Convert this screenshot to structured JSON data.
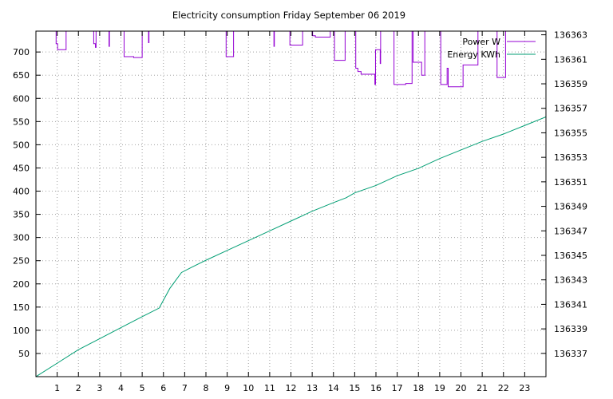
{
  "chart_data": {
    "type": "line",
    "title": "Electricity consumption Friday September 06 2019",
    "xlabel": "",
    "ylabel": "",
    "y2label": "",
    "xlim": [
      0,
      24
    ],
    "ylim": [
      0,
      745
    ],
    "y2lim": [
      136335.1,
      136363.3
    ],
    "xticks": [
      "1",
      "2",
      "3",
      "4",
      "5",
      "6",
      "7",
      "8",
      "9",
      "10",
      "11",
      "12",
      "13",
      "14",
      "15",
      "16",
      "17",
      "18",
      "19",
      "20",
      "21",
      "22",
      "23"
    ],
    "yticks": [
      "50",
      "100",
      "150",
      "200",
      "250",
      "300",
      "350",
      "400",
      "450",
      "500",
      "550",
      "600",
      "650",
      "700"
    ],
    "y2ticks": [
      "136337",
      "136339",
      "136341",
      "136343",
      "136345",
      "136347",
      "136349",
      "136351",
      "136353",
      "136355",
      "136357",
      "136359",
      "136361",
      "136363"
    ],
    "grid": true,
    "legend_position": "top-right",
    "colors": {
      "power": "#9400d3",
      "energy": "#009e73"
    },
    "series": [
      {
        "name": "Power W",
        "axis": "left",
        "style": "steps",
        "points": [
          [
            0.95,
            745
          ],
          [
            0.95,
            718
          ],
          [
            1.02,
            718
          ],
          [
            1.02,
            705
          ],
          [
            1.42,
            705
          ],
          [
            1.42,
            745
          ],
          [
            2.72,
            745
          ],
          [
            2.72,
            718
          ],
          [
            2.8,
            718
          ],
          [
            2.8,
            710
          ],
          [
            2.83,
            710
          ],
          [
            2.83,
            745
          ],
          [
            3.44,
            745
          ],
          [
            3.44,
            712
          ],
          [
            3.46,
            712
          ],
          [
            3.46,
            745
          ],
          [
            4.15,
            745
          ],
          [
            4.15,
            690
          ],
          [
            4.6,
            690
          ],
          [
            4.6,
            688
          ],
          [
            5.0,
            688
          ],
          [
            5.0,
            745
          ],
          [
            5.3,
            745
          ],
          [
            5.3,
            720
          ],
          [
            5.32,
            720
          ],
          [
            5.32,
            745
          ],
          [
            8.95,
            745
          ],
          [
            8.95,
            690
          ],
          [
            9.3,
            690
          ],
          [
            9.3,
            745
          ],
          [
            11.2,
            745
          ],
          [
            11.2,
            712
          ],
          [
            11.22,
            712
          ],
          [
            11.22,
            745
          ],
          [
            11.95,
            745
          ],
          [
            11.95,
            715
          ],
          [
            12.55,
            715
          ],
          [
            12.55,
            745
          ],
          [
            13.02,
            745
          ],
          [
            13.02,
            735
          ],
          [
            13.15,
            735
          ],
          [
            13.15,
            732
          ],
          [
            13.85,
            732
          ],
          [
            13.85,
            745
          ],
          [
            14.05,
            745
          ],
          [
            14.05,
            682
          ],
          [
            14.55,
            682
          ],
          [
            14.55,
            745
          ],
          [
            15.05,
            745
          ],
          [
            15.05,
            665
          ],
          [
            15.15,
            665
          ],
          [
            15.15,
            658
          ],
          [
            15.3,
            658
          ],
          [
            15.3,
            652
          ],
          [
            15.95,
            652
          ],
          [
            15.95,
            630
          ],
          [
            15.98,
            630
          ],
          [
            15.98,
            705
          ],
          [
            16.2,
            705
          ],
          [
            16.2,
            675
          ],
          [
            16.22,
            675
          ],
          [
            16.22,
            745
          ],
          [
            16.85,
            745
          ],
          [
            16.85,
            630
          ],
          [
            17.4,
            630
          ],
          [
            17.4,
            632
          ],
          [
            17.7,
            632
          ],
          [
            17.7,
            745
          ],
          [
            17.75,
            745
          ],
          [
            17.75,
            678
          ],
          [
            18.15,
            678
          ],
          [
            18.15,
            650
          ],
          [
            18.3,
            650
          ],
          [
            18.3,
            745
          ],
          [
            19.05,
            745
          ],
          [
            19.05,
            630
          ],
          [
            19.35,
            630
          ],
          [
            19.35,
            665
          ],
          [
            19.4,
            665
          ],
          [
            19.4,
            625
          ],
          [
            20.1,
            625
          ],
          [
            20.1,
            672
          ],
          [
            20.8,
            672
          ],
          [
            20.8,
            745
          ],
          [
            21.7,
            745
          ],
          [
            21.7,
            645
          ],
          [
            22.1,
            645
          ],
          [
            22.1,
            745
          ],
          [
            23.0,
            745
          ],
          [
            23.0,
            745
          ]
        ]
      },
      {
        "name": "Energy KWh",
        "axis": "right",
        "style": "line",
        "points": [
          [
            0,
            136335.1
          ],
          [
            1,
            136336.2
          ],
          [
            2,
            136337.3
          ],
          [
            3,
            136338.2
          ],
          [
            4,
            136339.1
          ],
          [
            5,
            136340.0
          ],
          [
            5.8,
            136340.7
          ],
          [
            6.3,
            136342.3
          ],
          [
            6.85,
            136343.6
          ],
          [
            7.3,
            136344.0
          ],
          [
            8,
            136344.6
          ],
          [
            9,
            136345.4
          ],
          [
            10,
            136346.2
          ],
          [
            11,
            136347.0
          ],
          [
            12,
            136347.8
          ],
          [
            13,
            136348.6
          ],
          [
            14,
            136349.3
          ],
          [
            14.6,
            136349.7
          ],
          [
            15,
            136350.1
          ],
          [
            16,
            136350.7
          ],
          [
            17,
            136351.5
          ],
          [
            18,
            136352.1
          ],
          [
            19,
            136352.9
          ],
          [
            20,
            136353.6
          ],
          [
            21,
            136354.3
          ],
          [
            22,
            136354.9
          ],
          [
            23,
            136355.6
          ],
          [
            24,
            136356.3
          ]
        ]
      }
    ]
  }
}
